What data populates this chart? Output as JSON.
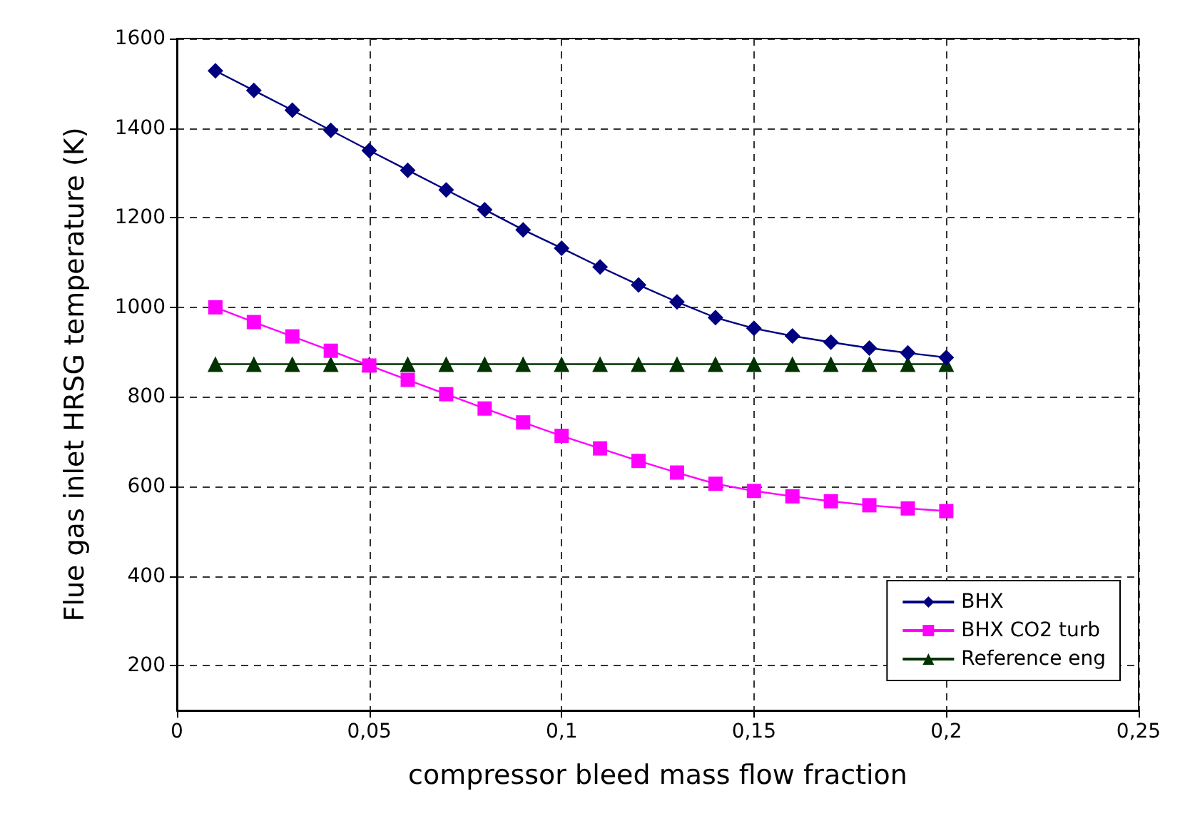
{
  "chart_data": {
    "type": "line",
    "xlabel": "compressor bleed mass flow fraction",
    "ylabel": "Flue gas inlet HRSG temperature (K)",
    "x": [
      0.01,
      0.02,
      0.03,
      0.04,
      0.05,
      0.06,
      0.07,
      0.08,
      0.09,
      0.1,
      0.11,
      0.12,
      0.13,
      0.14,
      0.15,
      0.16,
      0.17,
      0.18,
      0.19,
      0.2
    ],
    "series": [
      {
        "name": "BHX",
        "color": "#000080",
        "marker": "diamond",
        "values": [
          1528,
          1484,
          1440,
          1395,
          1350,
          1306,
          1262,
          1218,
          1173,
          1132,
          1090,
          1050,
          1012,
          977,
          953,
          936,
          922,
          909,
          898,
          888
        ]
      },
      {
        "name": "BHX CO2 turb",
        "color": "#ff00ff",
        "marker": "square",
        "values": [
          1000,
          967,
          935,
          903,
          870,
          838,
          806,
          774,
          743,
          713,
          685,
          657,
          631,
          606,
          590,
          578,
          567,
          558,
          551,
          545
        ]
      },
      {
        "name": "Reference eng",
        "color": "#003300",
        "marker": "triangle",
        "values": [
          873,
          873,
          873,
          873,
          873,
          873,
          873,
          873,
          873,
          873,
          873,
          873,
          873,
          873,
          873,
          873,
          873,
          873,
          873,
          873
        ]
      }
    ],
    "xlim": [
      0,
      0.25
    ],
    "xticks": [
      0,
      {
        "value": 0.05,
        "label": "0,05"
      },
      {
        "value": 0.1,
        "label": "0,1"
      },
      {
        "value": 0.15,
        "label": "0,15"
      },
      {
        "value": 0.2,
        "label": "0,2"
      },
      {
        "value": 0.25,
        "label": "0,25"
      }
    ],
    "ylim": [
      100,
      1600
    ],
    "yticks": [
      200,
      400,
      600,
      800,
      1000,
      1200,
      1400,
      1600
    ],
    "grid": true,
    "legend": "bottom right",
    "line_style": "solid"
  }
}
